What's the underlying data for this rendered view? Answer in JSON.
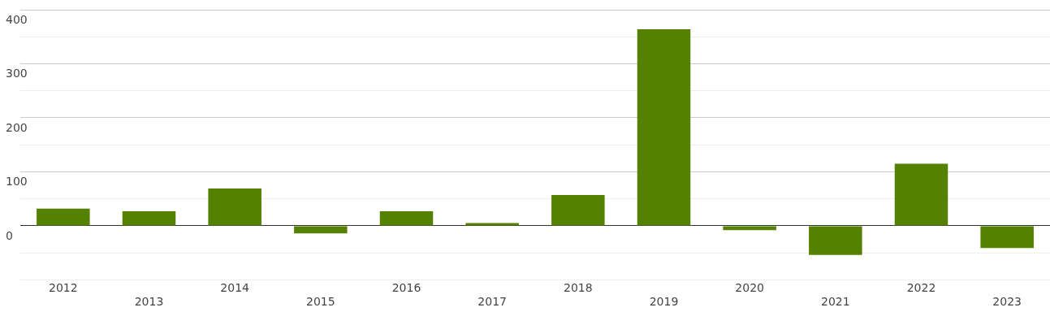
{
  "chart_data": {
    "type": "bar",
    "categories": [
      "2012",
      "2013",
      "2014",
      "2015",
      "2016",
      "2017",
      "2018",
      "2019",
      "2020",
      "2021",
      "2022",
      "2023"
    ],
    "values": [
      32,
      27,
      69,
      -14,
      27,
      5,
      57,
      364,
      -8,
      -54,
      115,
      -41
    ],
    "color": "#548200",
    "ylim": [
      -100,
      400
    ],
    "yticks": [
      {
        "value": -100,
        "label": null
      },
      {
        "value": -50,
        "label": null
      },
      0,
      {
        "value": 50,
        "label": null
      },
      100,
      {
        "value": 150,
        "label": null
      },
      200,
      {
        "value": 250,
        "label": null
      },
      300,
      {
        "value": 350,
        "label": null
      },
      400
    ],
    "grid": "y"
  }
}
